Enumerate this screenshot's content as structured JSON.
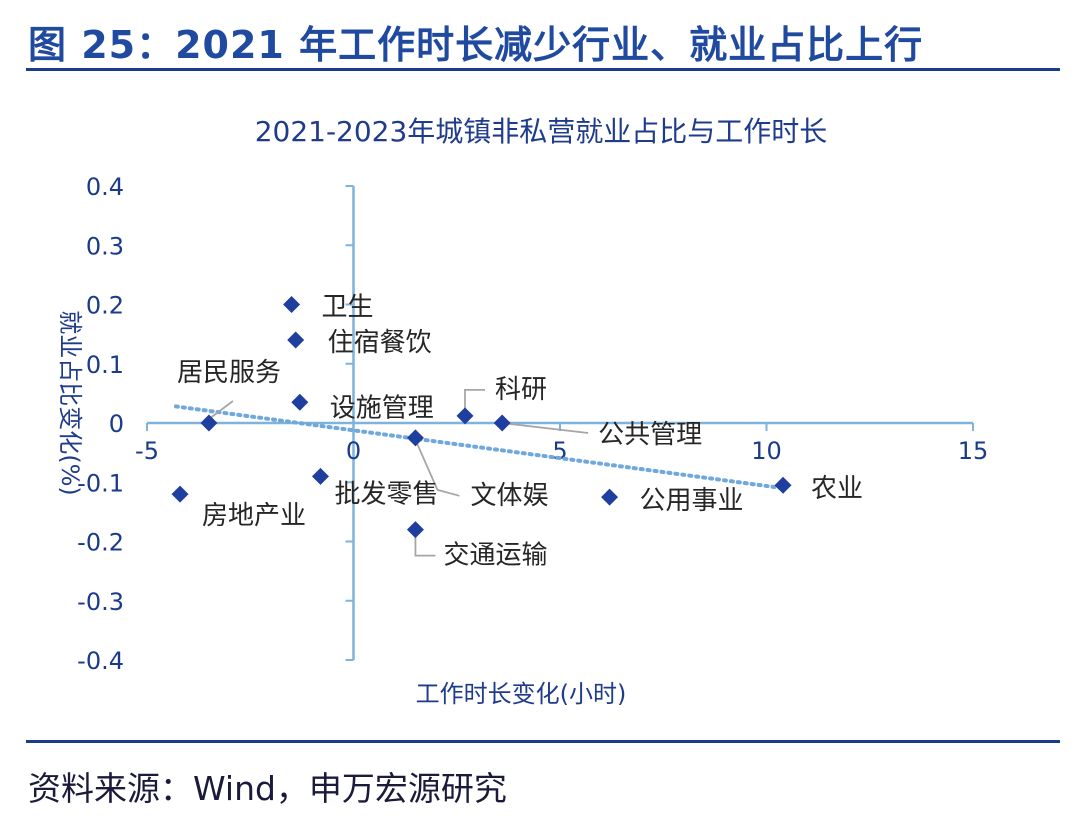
{
  "header": {
    "title": "图 25：2021 年工作时长减少行业、就业占比上行"
  },
  "footer": {
    "source": "资料来源：Wind，申万宏源研究"
  },
  "chart_data": {
    "type": "scatter",
    "title": "2021-2023年城镇非私营就业占比与工作时长",
    "xlabel": "工作时长变化(小时)",
    "ylabel": "就业占比变化(%)",
    "xlim": [
      -5,
      15
    ],
    "ylim": [
      -0.4,
      0.4
    ],
    "xticks": [
      "-5",
      "0",
      "5",
      "10",
      "15"
    ],
    "yticks": [
      "0.4",
      "0.3",
      "0.2",
      "0.1",
      "0",
      "-0.1",
      "-0.2",
      "-0.3",
      "-0.4"
    ],
    "marker_color": "#1f3f9e",
    "trendline_color": "#6fa8dc",
    "trendline": {
      "x": [
        -4.3,
        10.4
      ],
      "y": [
        0.028,
        -0.11
      ]
    },
    "points": [
      {
        "name": "卫生",
        "x": -1.5,
        "y": 0.2
      },
      {
        "name": "住宿餐饮",
        "x": -1.4,
        "y": 0.14
      },
      {
        "name": "居民服务",
        "x": -3.5,
        "y": 0.0
      },
      {
        "name": "设施管理",
        "x": -1.3,
        "y": 0.035
      },
      {
        "name": "科研",
        "x": 2.7,
        "y": 0.012
      },
      {
        "name": "公共管理",
        "x": 3.6,
        "y": 0.0
      },
      {
        "name": "文体娱",
        "x": 1.5,
        "y": -0.025
      },
      {
        "name": "农业",
        "x": 10.4,
        "y": -0.105
      },
      {
        "name": "公用事业",
        "x": 6.2,
        "y": -0.125
      },
      {
        "name": "批发零售",
        "x": -0.8,
        "y": -0.09
      },
      {
        "name": "房地产业",
        "x": -4.2,
        "y": -0.12
      },
      {
        "name": "交通运输",
        "x": 1.5,
        "y": -0.18
      }
    ]
  }
}
